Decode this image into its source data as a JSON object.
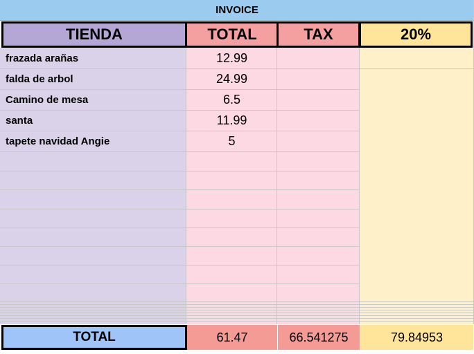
{
  "title": "INVOICE",
  "headers": {
    "store": "TIENDA",
    "total": "TOTAL",
    "tax": "TAX",
    "rate": "20%"
  },
  "items": [
    {
      "name": "frazada arañas",
      "total": "12.99"
    },
    {
      "name": "falda de arbol",
      "total": "24.99"
    },
    {
      "name": "Camino de mesa",
      "total": "6.5"
    },
    {
      "name": "santa",
      "total": "11.99"
    },
    {
      "name": "tapete navidad Angie",
      "total": "5"
    }
  ],
  "footer": {
    "label": "TOTAL",
    "total": "61.47",
    "tax": "66.541275",
    "rate": "79.84953"
  },
  "colors": {
    "title_bg": "#9ccbf0",
    "store_header": "#b4a7d6",
    "store_col": "#d9d2e9",
    "total_header": "#f4a0a0",
    "total_col": "#fdd9e3",
    "tax_header": "#f4a0a0",
    "tax_col": "#fdd9e3",
    "rate_header": "#ffe59a",
    "rate_col": "#fef0c8",
    "footer_label": "#9fc5f8",
    "footer_total": "#f49b96",
    "footer_tax": "#f49b96",
    "footer_rate": "#ffe59a"
  }
}
